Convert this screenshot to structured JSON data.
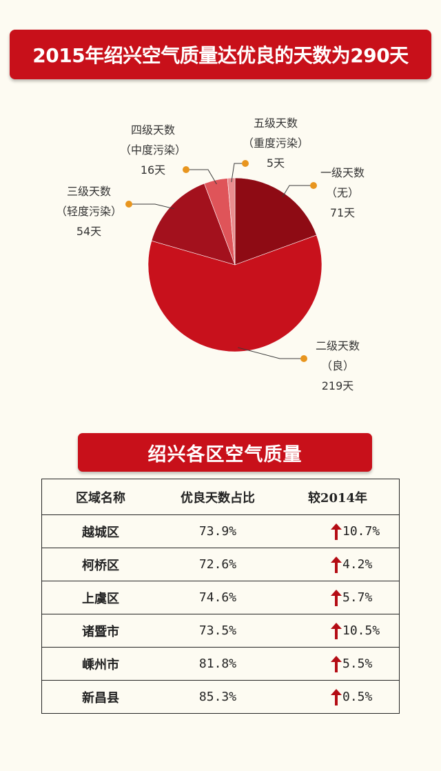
{
  "title": "2015年绍兴空气质量达优良的天数为290天",
  "chart_data": {
    "type": "pie",
    "title": "",
    "total": 365,
    "slices": [
      {
        "name": "一级天数",
        "note": "（无）",
        "value": 71,
        "value_label": "71天",
        "color": "#8e0b14"
      },
      {
        "name": "二级天数",
        "note": "（良）",
        "value": 219,
        "value_label": "219天",
        "color": "#c8111c"
      },
      {
        "name": "三级天数",
        "note": "（轻度污染）",
        "value": 54,
        "value_label": "54天",
        "color": "#a3111d"
      },
      {
        "name": "四级天数",
        "note": "（中度污染）",
        "value": 16,
        "value_label": "16天",
        "color": "#df5459"
      },
      {
        "name": "五级天数",
        "note": "（重度污染）",
        "value": 5,
        "value_label": "5天",
        "color": "#ea8d8f"
      }
    ],
    "marker_color": "#e8951e",
    "leader_color": "#3a3a3a"
  },
  "section_title": "绍兴各区空气质量",
  "table": {
    "headers": [
      "区域名称",
      "优良天数占比",
      "较2014年"
    ],
    "rows": [
      {
        "region": "越城区",
        "ratio": "73.9%",
        "change": "10.7%",
        "direction": "up"
      },
      {
        "region": "柯桥区",
        "ratio": "72.6%",
        "change": "4.2%",
        "direction": "up"
      },
      {
        "region": "上虞区",
        "ratio": "74.6%",
        "change": "5.7%",
        "direction": "up"
      },
      {
        "region": "诸暨市",
        "ratio": "73.5%",
        "change": "10.5%",
        "direction": "up"
      },
      {
        "region": "嵊州市",
        "ratio": "81.8%",
        "change": "5.5%",
        "direction": "up"
      },
      {
        "region": "新昌县",
        "ratio": "85.3%",
        "change": "0.5%",
        "direction": "up"
      }
    ],
    "arrow_color": "#b40c14"
  }
}
